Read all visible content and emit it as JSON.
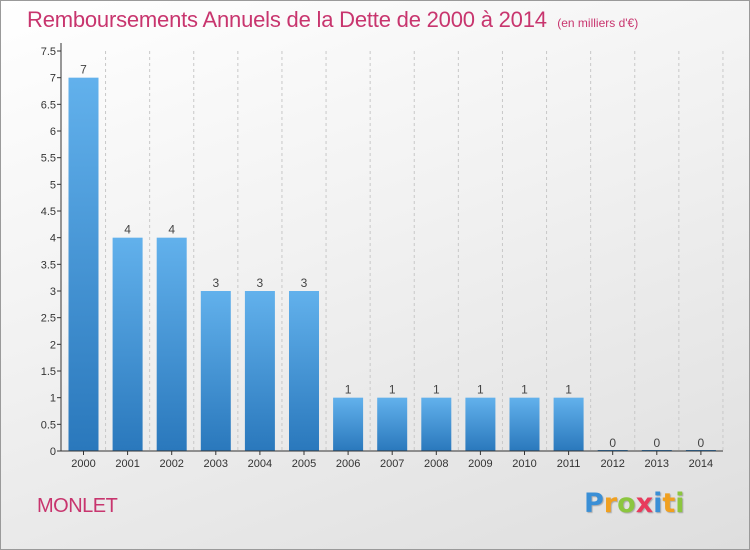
{
  "header": {
    "title": "Remboursements Annuels de la Dette de 2000 à 2014",
    "subtitle": "(en milliers d'€)"
  },
  "footer": {
    "commune": "MONLET",
    "logo": {
      "text": "Proxiti",
      "letters": [
        "P",
        "r",
        "o",
        "x",
        "i",
        "t",
        "i"
      ],
      "colors": [
        "#3a8fd6",
        "#f0a020",
        "#8cc63f",
        "#e83a5c",
        "#3a8fd6",
        "#f0a020",
        "#8cc63f"
      ]
    }
  },
  "colors": {
    "title": "#c8356e",
    "bar_light": "#62b1ec",
    "bar_dark": "#2a78bc",
    "axis": "#333333",
    "grid": "#c8c8c8"
  },
  "chart_data": {
    "type": "bar",
    "title": "Remboursements Annuels de la Dette de 2000 à 2014",
    "subtitle": "(en milliers d'€)",
    "categories": [
      "2000",
      "2001",
      "2002",
      "2003",
      "2004",
      "2005",
      "2006",
      "2007",
      "2008",
      "2009",
      "2010",
      "2011",
      "2012",
      "2013",
      "2014"
    ],
    "values": [
      7,
      4,
      4,
      3,
      3,
      3,
      1,
      1,
      1,
      1,
      1,
      1,
      0,
      0,
      0
    ],
    "data_labels": [
      "7",
      "4",
      "4",
      "3",
      "3",
      "3",
      "1",
      "1",
      "1",
      "1",
      "1",
      "1",
      "0",
      "0",
      "0"
    ],
    "ylim": [
      0,
      7.5
    ],
    "yticks": [
      "0",
      "0.5",
      "1",
      "1.5",
      "2",
      "2.5",
      "3",
      "3.5",
      "4",
      "4.5",
      "5",
      "5.5",
      "6",
      "6.5",
      "7",
      "7.5"
    ],
    "ytick_values": [
      0,
      0.5,
      1,
      1.5,
      2,
      2.5,
      3,
      3.5,
      4,
      4.5,
      5,
      5.5,
      6,
      6.5,
      7,
      7.5
    ],
    "grid": true,
    "grid_style": "vertical dashed",
    "legend": "none"
  }
}
